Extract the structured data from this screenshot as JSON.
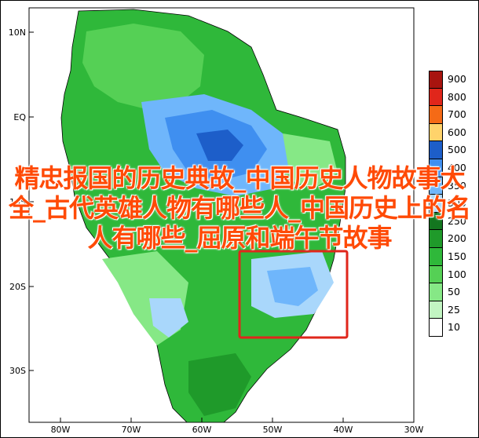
{
  "map": {
    "lat_labels": [
      "10N",
      "EQ",
      "10S",
      "20S",
      "30S"
    ],
    "lon_labels": [
      "80W",
      "70W",
      "60W",
      "50W",
      "40W",
      "30W"
    ]
  },
  "legend": {
    "levels": [
      {
        "label": "900",
        "color": "#a8140f"
      },
      {
        "label": "800",
        "color": "#e0261b"
      },
      {
        "label": "700",
        "color": "#f56a16"
      },
      {
        "label": "600",
        "color": "#ffd36b"
      },
      {
        "label": "500",
        "color": "#1d5ec9"
      },
      {
        "label": "400",
        "color": "#3f8ff0"
      },
      {
        "label": "350",
        "color": "#6fb6fb"
      },
      {
        "label": "300",
        "color": "#a9d7fb"
      },
      {
        "label": "250",
        "color": "#13761f"
      },
      {
        "label": "200",
        "color": "#1f9a2a"
      },
      {
        "label": "150",
        "color": "#2fb83a"
      },
      {
        "label": "100",
        "color": "#55d055"
      },
      {
        "label": "50",
        "color": "#86e886"
      },
      {
        "label": "25",
        "color": "#c2f5c2"
      },
      {
        "label": "10",
        "color": "#ffffff"
      }
    ]
  },
  "caption": {
    "text": "精忠报国的历史典故_中国历史人物故事大全_古代英雄人物有哪些人_中国历史上的名人有哪些_屈原和端午节故事"
  },
  "highlight_box": {
    "color": "#e0261b"
  }
}
